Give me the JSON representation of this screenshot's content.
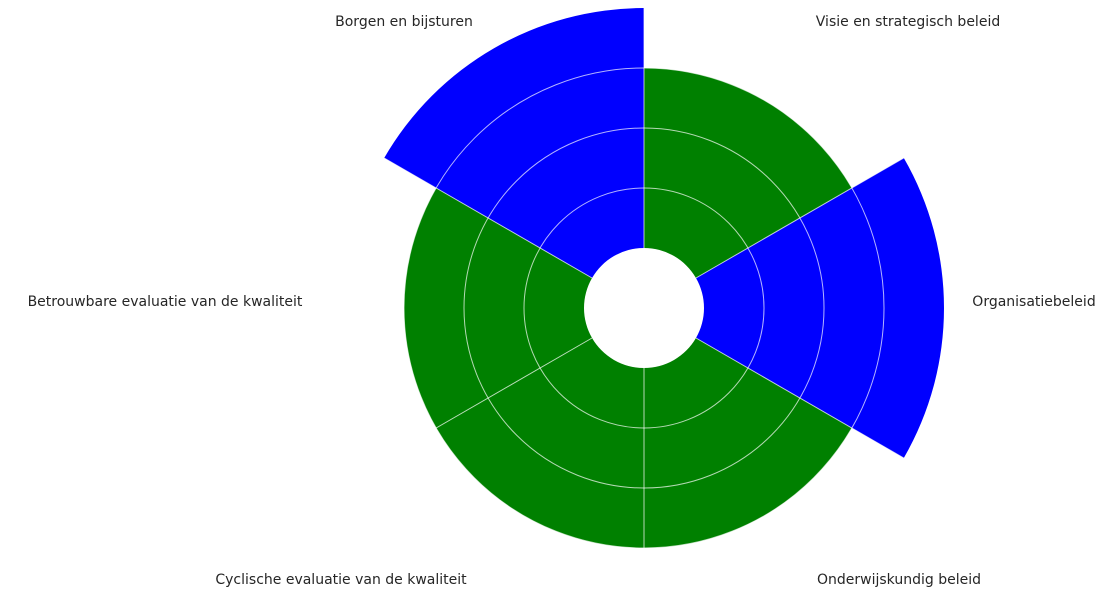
{
  "chart_data": {
    "type": "polar_bar",
    "categories": [
      "Visie en strategisch beleid",
      "Organisatiebeleid",
      "Onderwijskundig beleid",
      "Cyclische evaluatie van de kwaliteit",
      "Betrouwbare evaluatie van de kwaliteit",
      "Borgen en bijsturen"
    ],
    "values": [
      3,
      4,
      3,
      3,
      3,
      4
    ],
    "colors": [
      "#008000",
      "#0000ff",
      "#008000",
      "#008000",
      "#008000",
      "#0000ff"
    ],
    "ylim": [
      0,
      4
    ],
    "yticks": [
      1,
      2,
      3
    ],
    "grid": true
  }
}
